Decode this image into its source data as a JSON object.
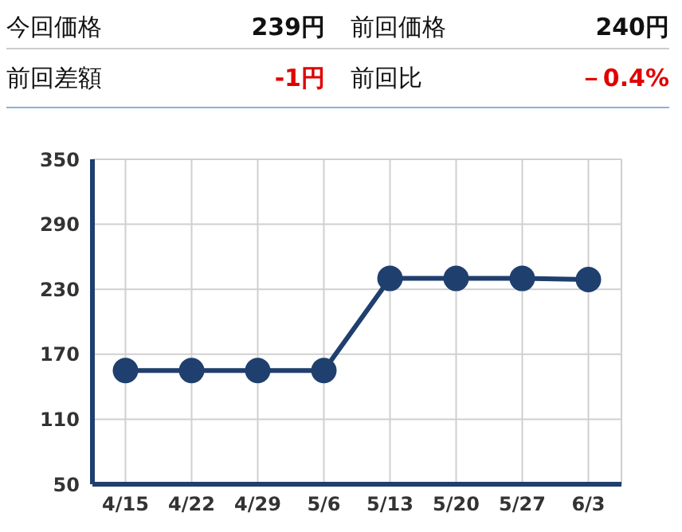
{
  "chart_data": {
    "type": "line",
    "annotations": [
      "今回価格",
      "239円",
      "前回価格",
      "240円",
      "前回差額",
      "-1円",
      "前回比",
      "－0.4%"
    ],
    "categories": [
      "4/15",
      "4/22",
      "4/29",
      "5/6",
      "5/13",
      "5/20",
      "5/27",
      "6/3"
    ],
    "values": [
      155,
      155,
      155,
      155,
      240,
      240,
      240,
      239
    ],
    "color": "#1f3f6e",
    "ylim": [
      50,
      350
    ],
    "yticks": [
      50,
      110,
      170,
      230,
      290,
      350
    ],
    "grid": true,
    "marker": "circle",
    "line_style": "solid"
  }
}
